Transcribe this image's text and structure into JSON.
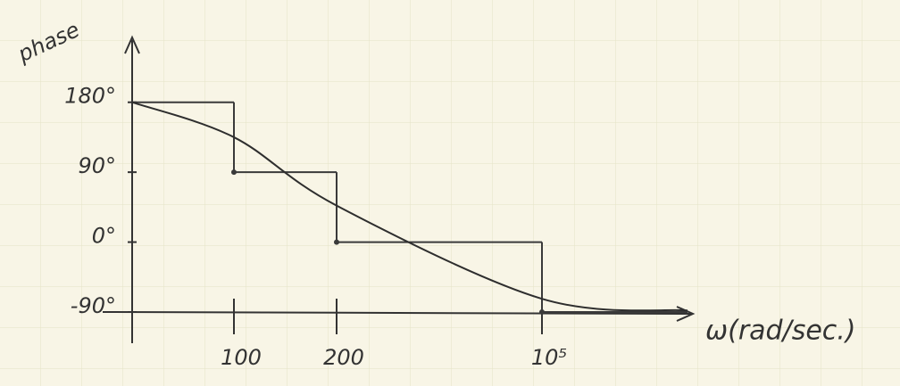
{
  "chart_data": {
    "type": "line",
    "y_label": "phase",
    "x_label": "ω(rad/sec.)",
    "categories": [
      null,
      "100",
      "200",
      "10⁵",
      null
    ],
    "ylim": [
      -90,
      260
    ],
    "yticks": [
      {
        "value": 180,
        "label": "180°"
      },
      {
        "value": 90,
        "label": "90°"
      },
      {
        "value": 0,
        "label": "0°"
      },
      {
        "value": -90,
        "label": "-90°"
      }
    ],
    "series": [
      {
        "color": "#3a3a3a",
        "style": "step",
        "values": [
          180,
          90,
          0,
          -90,
          -90
        ]
      },
      {
        "color": "#2e2e2e",
        "style": "smooth",
        "values": [
          180,
          135,
          47,
          -73,
          -88
        ]
      }
    ]
  }
}
